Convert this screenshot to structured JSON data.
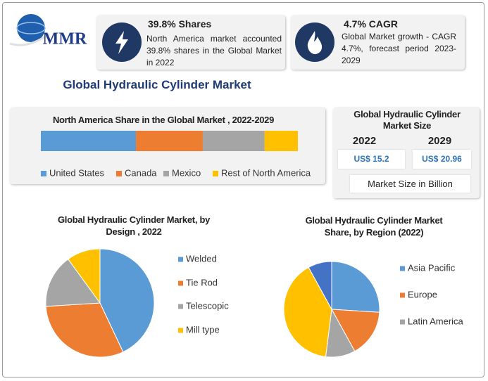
{
  "header": {
    "logo": "MMR",
    "title": "Global Hydraulic Cylinder Market"
  },
  "stats": [
    {
      "title": "39.8% Shares",
      "text": "North America market accounted 39.8% shares in the Global Market in 2022"
    },
    {
      "title": "4.7% CAGR",
      "text": "Global Market growth - CAGR 4.7%, forecast period 2023-2029"
    }
  ],
  "market_size": {
    "title": "Global Hydraulic Cylinder Market Size",
    "years": [
      "2022",
      "2029"
    ],
    "values": [
      "US$ 15.2",
      "US$ 20.96"
    ],
    "note": "Market Size in Billion"
  },
  "chart_data": [
    {
      "type": "bar",
      "orientation": "horizontal",
      "stacked": true,
      "title": "North America Share in the Global Market , 2022-2029",
      "xlim": [
        0,
        100
      ],
      "series": [
        {
          "name": "United States",
          "color": "#5b9bd5",
          "values": [
            37
          ]
        },
        {
          "name": "Canada",
          "color": "#ed7d31",
          "values": [
            26
          ]
        },
        {
          "name": "Mexico",
          "color": "#a5a5a5",
          "values": [
            24
          ]
        },
        {
          "name": "Rest of North America",
          "color": "#ffc000",
          "values": [
            13
          ]
        }
      ]
    },
    {
      "type": "pie",
      "title": "Global Hydraulic Cylinder Market,  by Design , 2022",
      "categories": [
        "Welded",
        "Tie Rod",
        "Telescopic",
        "Mill type"
      ],
      "values": [
        43,
        31,
        16,
        10
      ],
      "colors": [
        "#5b9bd5",
        "#ed7d31",
        "#a5a5a5",
        "#ffc000"
      ]
    },
    {
      "type": "pie",
      "title": "Global Hydraulic Cylinder Market Share, by Region (2022)",
      "categories": [
        "Asia Pacific",
        "Europe",
        "Latin America",
        null,
        null
      ],
      "values": [
        26,
        16,
        10,
        40,
        8
      ],
      "colors": [
        "#5b9bd5",
        "#ed7d31",
        "#a5a5a5",
        "#ffc000",
        "#4472c4"
      ]
    }
  ]
}
